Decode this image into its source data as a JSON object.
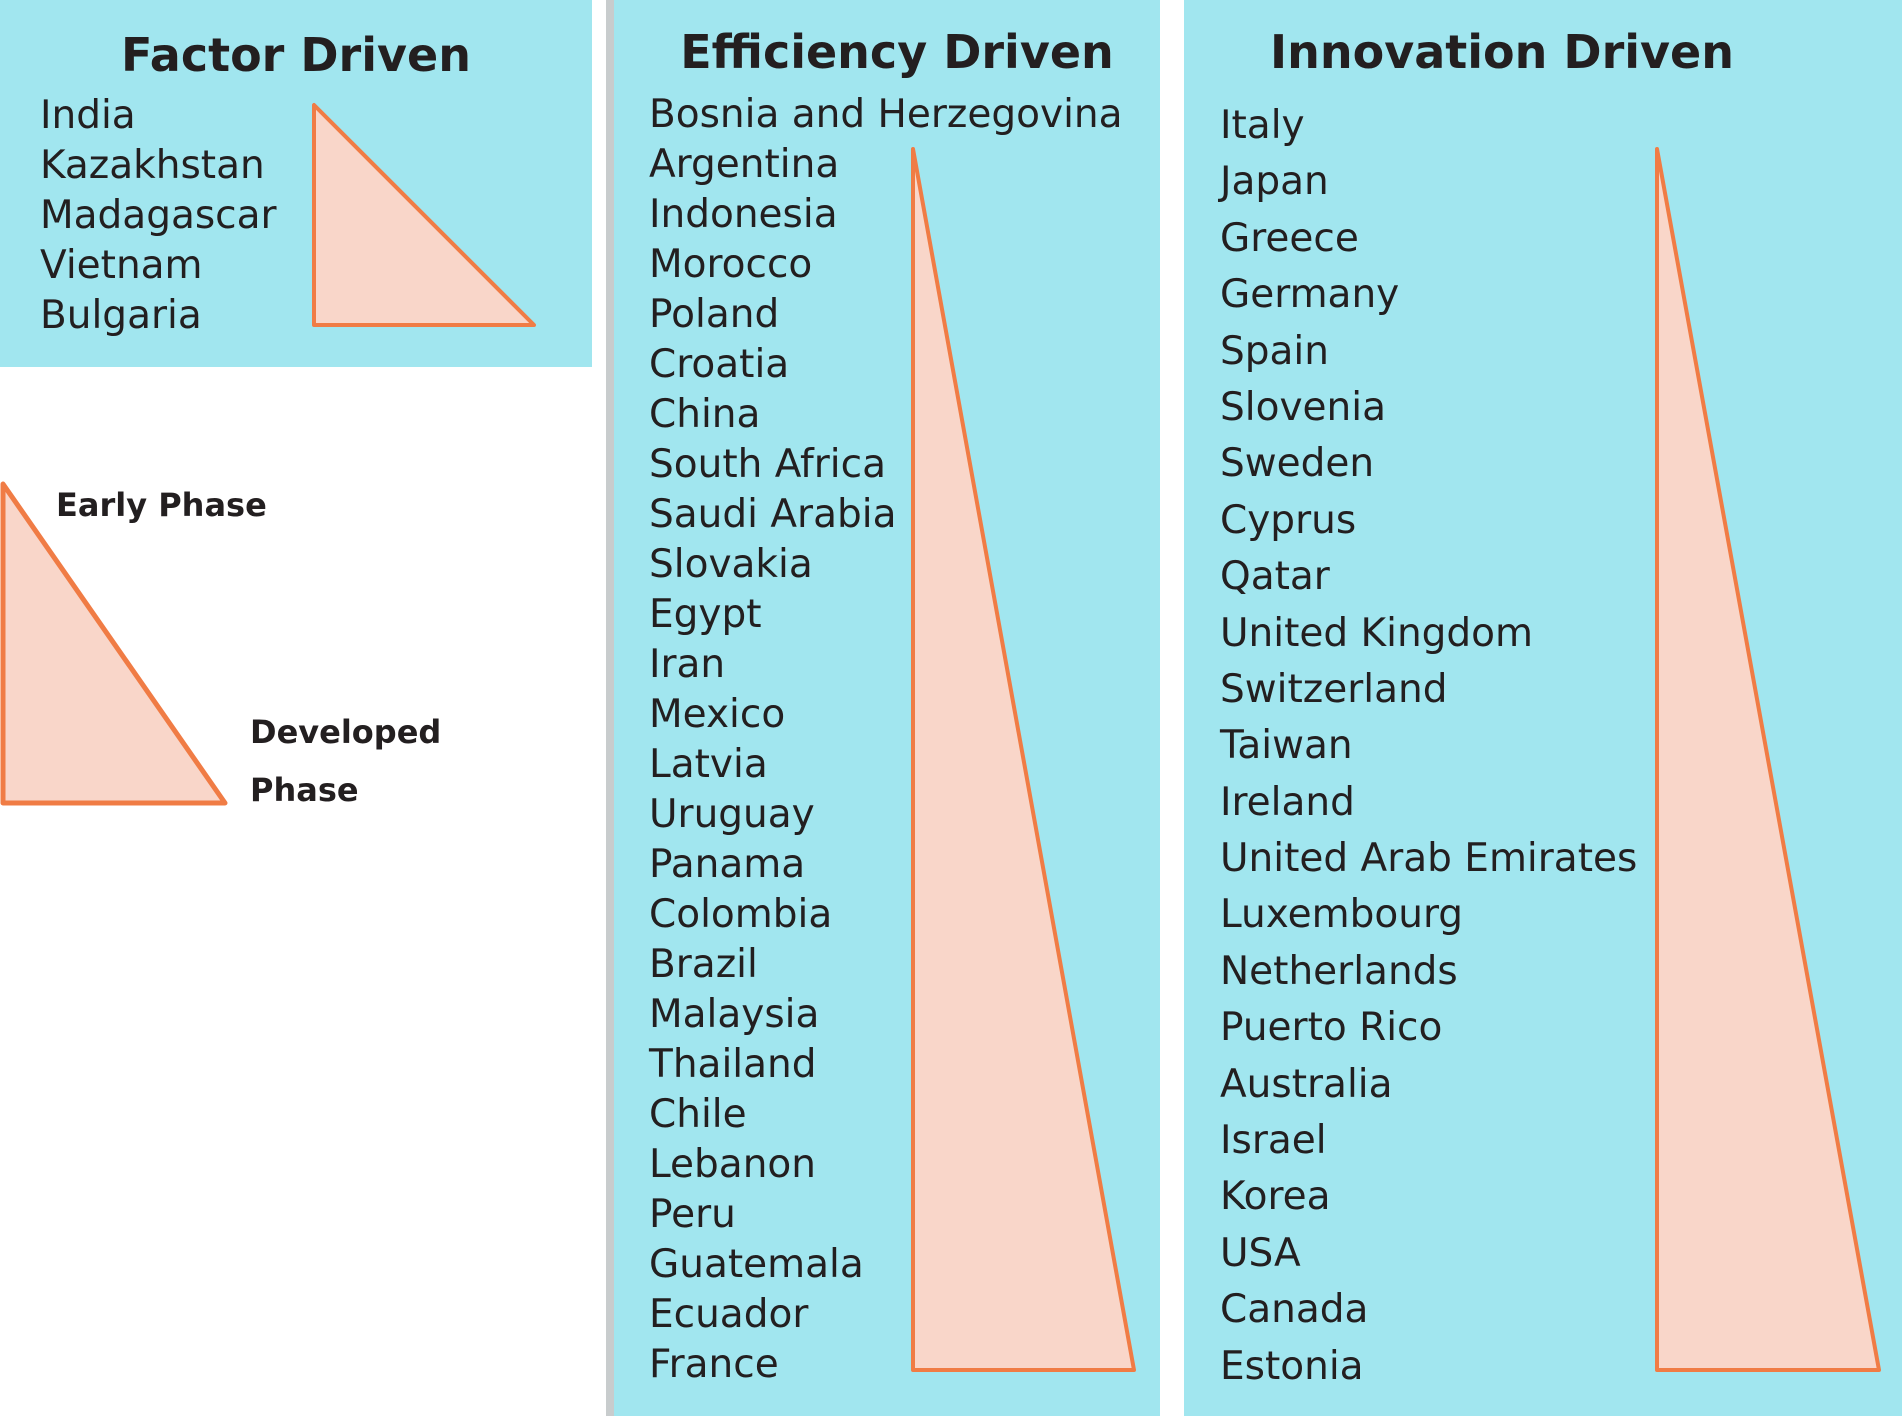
{
  "colors": {
    "panel_bg": "#a1e6ef",
    "triangle_fill": "#f9d6c9",
    "triangle_stroke": "#f07c45",
    "text": "#231f20",
    "divider": "#c8cccd"
  },
  "factor": {
    "title": "Factor Driven",
    "countries": [
      "India",
      "Kazakhstan",
      "Madagascar",
      "Vietnam",
      "Bulgaria"
    ]
  },
  "efficiency": {
    "title": "Efficiency Driven",
    "countries": [
      "Bosnia and Herzegovina",
      "Argentina",
      "Indonesia",
      "Morocco",
      "Poland",
      "Croatia",
      "China",
      "South Africa",
      "Saudi Arabia",
      "Slovakia",
      "Egypt",
      "Iran",
      "Mexico",
      "Latvia",
      "Uruguay",
      "Panama",
      "Colombia",
      "Brazil",
      "Malaysia",
      "Thailand",
      "Chile",
      "Lebanon",
      "Peru",
      "Guatemala",
      "Ecuador",
      "France"
    ]
  },
  "innovation": {
    "title": "Innovation Driven",
    "countries": [
      "Italy",
      "Japan",
      "Greece",
      "Germany",
      "Spain",
      "Slovenia",
      "Sweden",
      "Cyprus",
      "Qatar",
      "United Kingdom",
      "Switzerland",
      "Taiwan",
      "Ireland",
      "United Arab Emirates",
      "Luxembourg",
      "Netherlands",
      "Puerto Rico",
      "Australia",
      "Israel",
      "Korea",
      "USA",
      "Canada",
      "Estonia"
    ]
  },
  "legend": {
    "top_label": "Early Phase",
    "bottom_label_line1": "Developed",
    "bottom_label_line2": "Phase"
  }
}
